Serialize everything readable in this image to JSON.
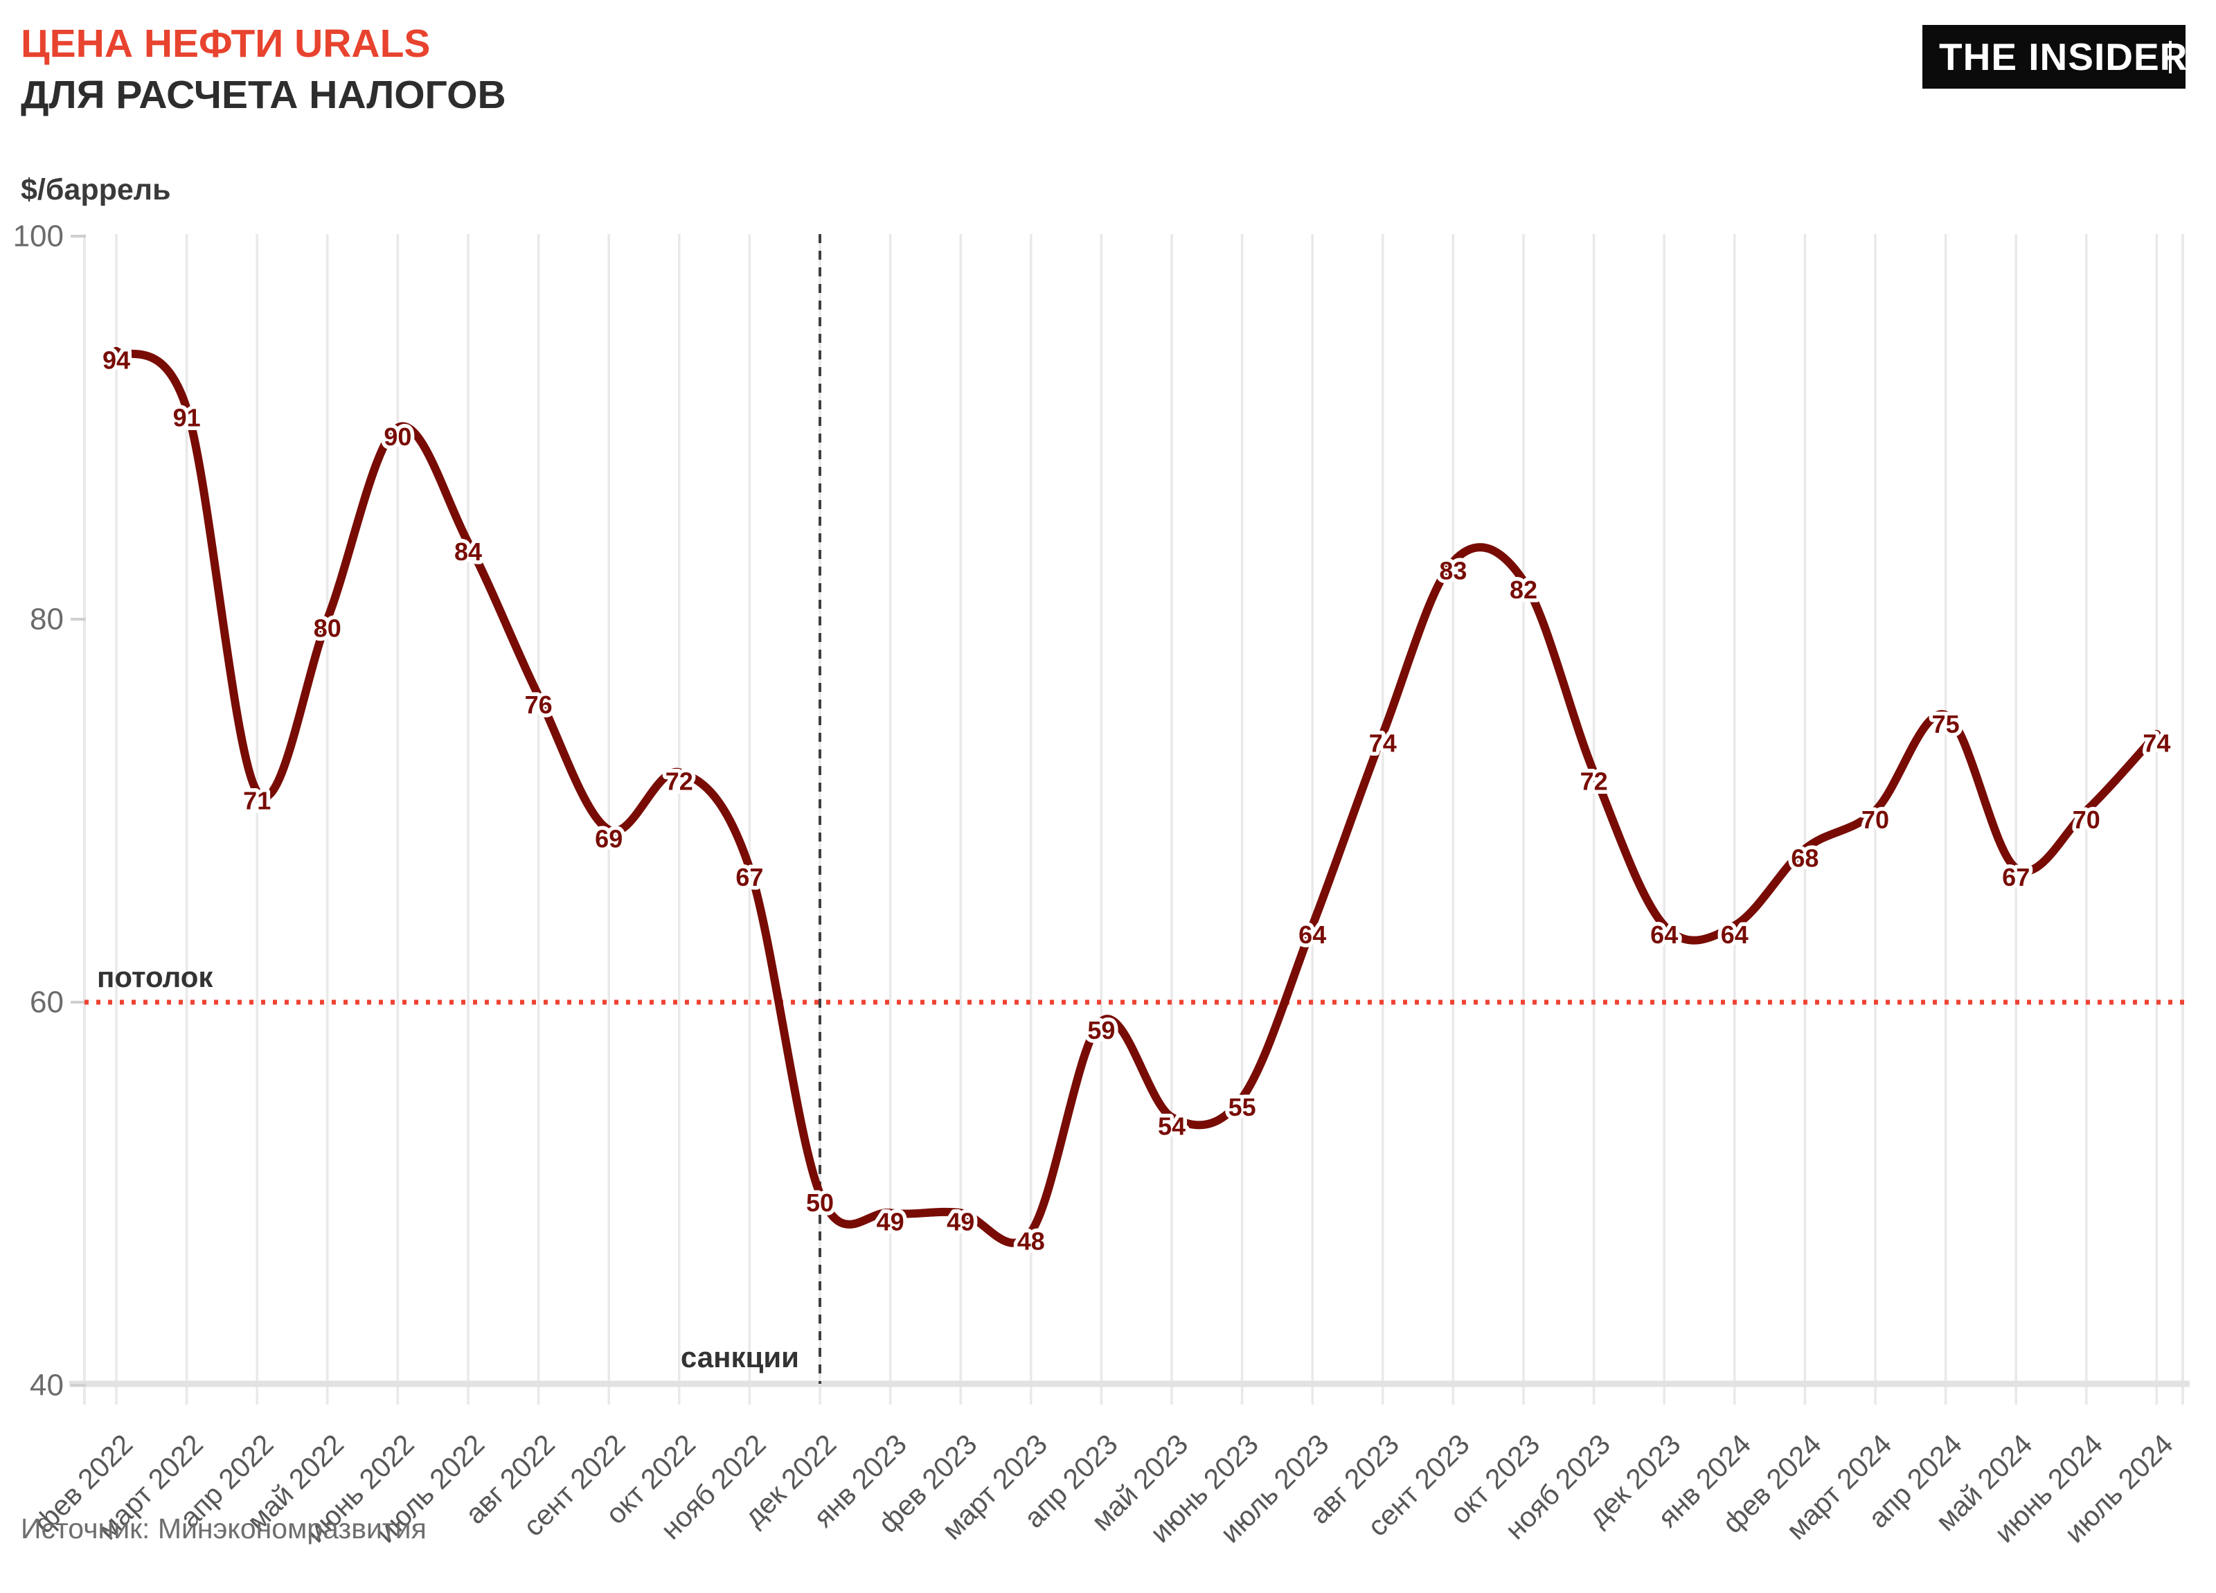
{
  "header": {
    "title_line1": "ЦЕНА НЕФТИ URALS",
    "title_line2": "ДЛЯ РАСЧЕТА НАЛОГОВ",
    "units": "$/баррель",
    "logo_text": "THE INSIDER"
  },
  "source": "Источник: Минэкономразвития",
  "colors": {
    "title_accent": "#e8432f",
    "title_dark": "#2d2d2d",
    "line": "#780c05",
    "data_label": "#780c05",
    "ceiling_line": "#ee4334",
    "sanctions_line": "#3f3f3f",
    "grid": "#e9e9e9",
    "baseline": "#e2e2e2",
    "tick": "#cfcfcf",
    "y_label": "#6b6b6b",
    "x_label": "#575757",
    "annotation_text": "#333333"
  },
  "chart_data": {
    "type": "line",
    "title": "ЦЕНА НЕФТИ URALS ДЛЯ РАСЧЕТА НАЛОГОВ",
    "ylabel": "$/баррель",
    "ylim": [
      40,
      100
    ],
    "yticks": [
      40,
      60,
      80,
      100
    ],
    "grid": "vertical-monthly",
    "legend": "none",
    "categories": [
      "фев 2022",
      "март 2022",
      "апр 2022",
      "май 2022",
      "июнь 2022",
      "июль 2022",
      "авг 2022",
      "сент 2022",
      "окт 2022",
      "нояб 2022",
      "дек 2022",
      "янв 2023",
      "фев 2023",
      "март 2023",
      "апр 2023",
      "май 2023",
      "июнь 2023",
      "июль 2023",
      "авг 2023",
      "сент 2023",
      "окт 2023",
      "нояб 2023",
      "дек 2023",
      "янв 2024",
      "фев 2024",
      "март 2024",
      "апр 2024",
      "май 2024",
      "июнь 2024",
      "июль 2024"
    ],
    "values": [
      94,
      91,
      71,
      80,
      90,
      84,
      76,
      69,
      72,
      67,
      50,
      49,
      49,
      48,
      59,
      54,
      55,
      64,
      74,
      83,
      82,
      72,
      64,
      64,
      68,
      70,
      75,
      67,
      70,
      74
    ],
    "annotations": [
      {
        "type": "hline",
        "value": 60,
        "label": "потолок"
      },
      {
        "type": "vline",
        "category": "дек 2022",
        "label": "санкции"
      }
    ]
  }
}
